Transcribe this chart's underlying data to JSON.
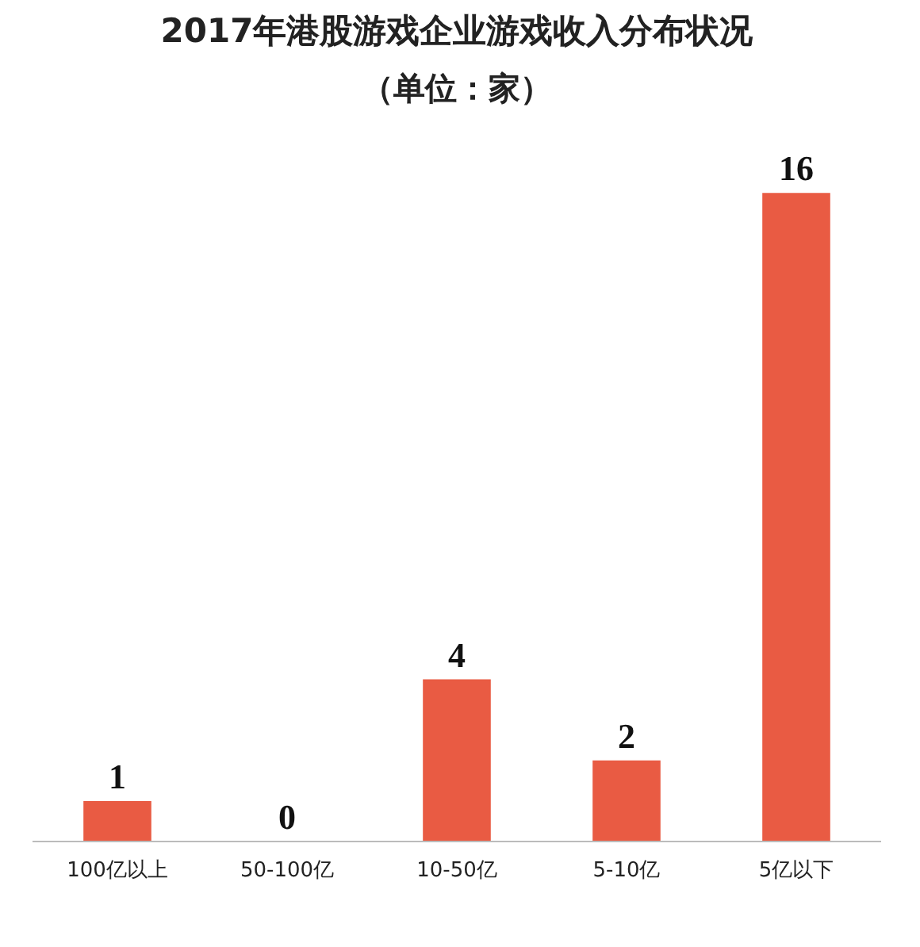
{
  "chart_data": {
    "type": "bar",
    "title": "2017年港股游戏企业游戏收入分布状况",
    "subtitle": "（单位：家）",
    "categories": [
      "100亿以上",
      "50-100亿",
      "10-50亿",
      "5-10亿",
      "5亿以下"
    ],
    "values": [
      1,
      0,
      4,
      2,
      16
    ],
    "color": "#e95b43",
    "data_labels": true
  }
}
